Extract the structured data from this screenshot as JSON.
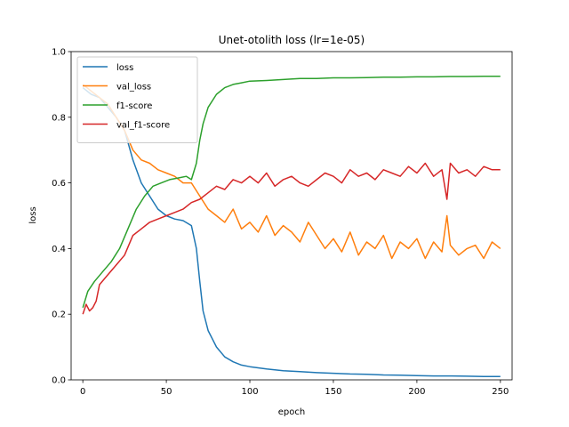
{
  "chart_data": {
    "type": "line",
    "title": "Unet-otolith loss (lr=1e-05)",
    "xlabel": "epoch",
    "ylabel": "loss",
    "xlim": [
      -7,
      257
    ],
    "ylim": [
      0,
      1
    ],
    "xticks": [
      0,
      50,
      100,
      150,
      200,
      250
    ],
    "yticks": [
      0.0,
      0.2,
      0.4,
      0.6,
      0.8,
      1.0
    ],
    "xtick_labels": [
      "0",
      "50",
      "100",
      "150",
      "200",
      "250"
    ],
    "ytick_labels": [
      "0.0",
      "0.2",
      "0.4",
      "0.6",
      "0.8",
      "1.0"
    ],
    "grid": false,
    "legend_position": "top-left",
    "series": [
      {
        "name": "loss",
        "color": "#1f77b4",
        "x": [
          0,
          5,
          10,
          15,
          20,
          25,
          30,
          35,
          40,
          45,
          50,
          55,
          60,
          65,
          68,
          70,
          72,
          75,
          80,
          85,
          90,
          95,
          100,
          110,
          120,
          130,
          140,
          150,
          160,
          170,
          180,
          190,
          200,
          210,
          220,
          230,
          240,
          250
        ],
        "y": [
          0.89,
          0.87,
          0.86,
          0.83,
          0.8,
          0.76,
          0.67,
          0.6,
          0.56,
          0.52,
          0.5,
          0.49,
          0.485,
          0.47,
          0.4,
          0.3,
          0.21,
          0.15,
          0.1,
          0.07,
          0.055,
          0.045,
          0.04,
          0.033,
          0.028,
          0.025,
          0.022,
          0.02,
          0.018,
          0.017,
          0.015,
          0.014,
          0.013,
          0.012,
          0.012,
          0.011,
          0.01,
          0.01
        ]
      },
      {
        "name": "val_loss",
        "color": "#ff7f0e",
        "x": [
          0,
          5,
          10,
          15,
          20,
          25,
          30,
          35,
          40,
          45,
          50,
          55,
          60,
          65,
          70,
          75,
          80,
          85,
          90,
          95,
          100,
          105,
          110,
          115,
          120,
          125,
          130,
          135,
          140,
          145,
          150,
          155,
          160,
          165,
          170,
          175,
          180,
          185,
          190,
          195,
          200,
          205,
          210,
          215,
          218,
          220,
          225,
          230,
          235,
          240,
          245,
          250
        ],
        "y": [
          0.9,
          0.88,
          0.86,
          0.84,
          0.8,
          0.76,
          0.7,
          0.67,
          0.66,
          0.64,
          0.63,
          0.62,
          0.6,
          0.6,
          0.56,
          0.52,
          0.5,
          0.48,
          0.52,
          0.46,
          0.48,
          0.45,
          0.5,
          0.44,
          0.47,
          0.45,
          0.42,
          0.48,
          0.44,
          0.4,
          0.43,
          0.39,
          0.45,
          0.38,
          0.42,
          0.4,
          0.44,
          0.37,
          0.42,
          0.4,
          0.43,
          0.37,
          0.42,
          0.39,
          0.5,
          0.41,
          0.38,
          0.4,
          0.41,
          0.37,
          0.42,
          0.4
        ]
      },
      {
        "name": "f1-score",
        "color": "#2ca02c",
        "x": [
          0,
          3,
          7,
          12,
          17,
          22,
          27,
          32,
          37,
          42,
          47,
          52,
          57,
          62,
          65,
          68,
          70,
          72,
          75,
          80,
          85,
          90,
          95,
          100,
          110,
          120,
          130,
          140,
          150,
          160,
          170,
          180,
          190,
          200,
          210,
          220,
          230,
          240,
          250
        ],
        "y": [
          0.22,
          0.27,
          0.3,
          0.33,
          0.36,
          0.4,
          0.46,
          0.52,
          0.56,
          0.59,
          0.6,
          0.61,
          0.615,
          0.62,
          0.61,
          0.66,
          0.73,
          0.78,
          0.83,
          0.87,
          0.89,
          0.9,
          0.905,
          0.91,
          0.912,
          0.915,
          0.918,
          0.918,
          0.92,
          0.92,
          0.921,
          0.922,
          0.922,
          0.923,
          0.923,
          0.924,
          0.924,
          0.925,
          0.925
        ]
      },
      {
        "name": "val_f1-score",
        "color": "#d62728",
        "x": [
          0,
          2,
          4,
          6,
          8,
          10,
          15,
          20,
          25,
          30,
          35,
          40,
          45,
          50,
          55,
          60,
          65,
          70,
          75,
          80,
          85,
          90,
          95,
          100,
          105,
          110,
          115,
          120,
          125,
          130,
          135,
          140,
          145,
          150,
          155,
          160,
          165,
          170,
          175,
          180,
          185,
          190,
          195,
          200,
          205,
          210,
          215,
          218,
          220,
          225,
          230,
          235,
          240,
          245,
          250
        ],
        "y": [
          0.2,
          0.23,
          0.21,
          0.22,
          0.24,
          0.29,
          0.32,
          0.35,
          0.38,
          0.44,
          0.46,
          0.48,
          0.49,
          0.5,
          0.51,
          0.52,
          0.54,
          0.55,
          0.57,
          0.59,
          0.58,
          0.61,
          0.6,
          0.62,
          0.6,
          0.63,
          0.59,
          0.61,
          0.62,
          0.6,
          0.59,
          0.61,
          0.63,
          0.62,
          0.6,
          0.64,
          0.62,
          0.63,
          0.61,
          0.64,
          0.63,
          0.62,
          0.65,
          0.63,
          0.66,
          0.62,
          0.64,
          0.55,
          0.66,
          0.63,
          0.64,
          0.62,
          0.65,
          0.64,
          0.64
        ]
      }
    ]
  }
}
